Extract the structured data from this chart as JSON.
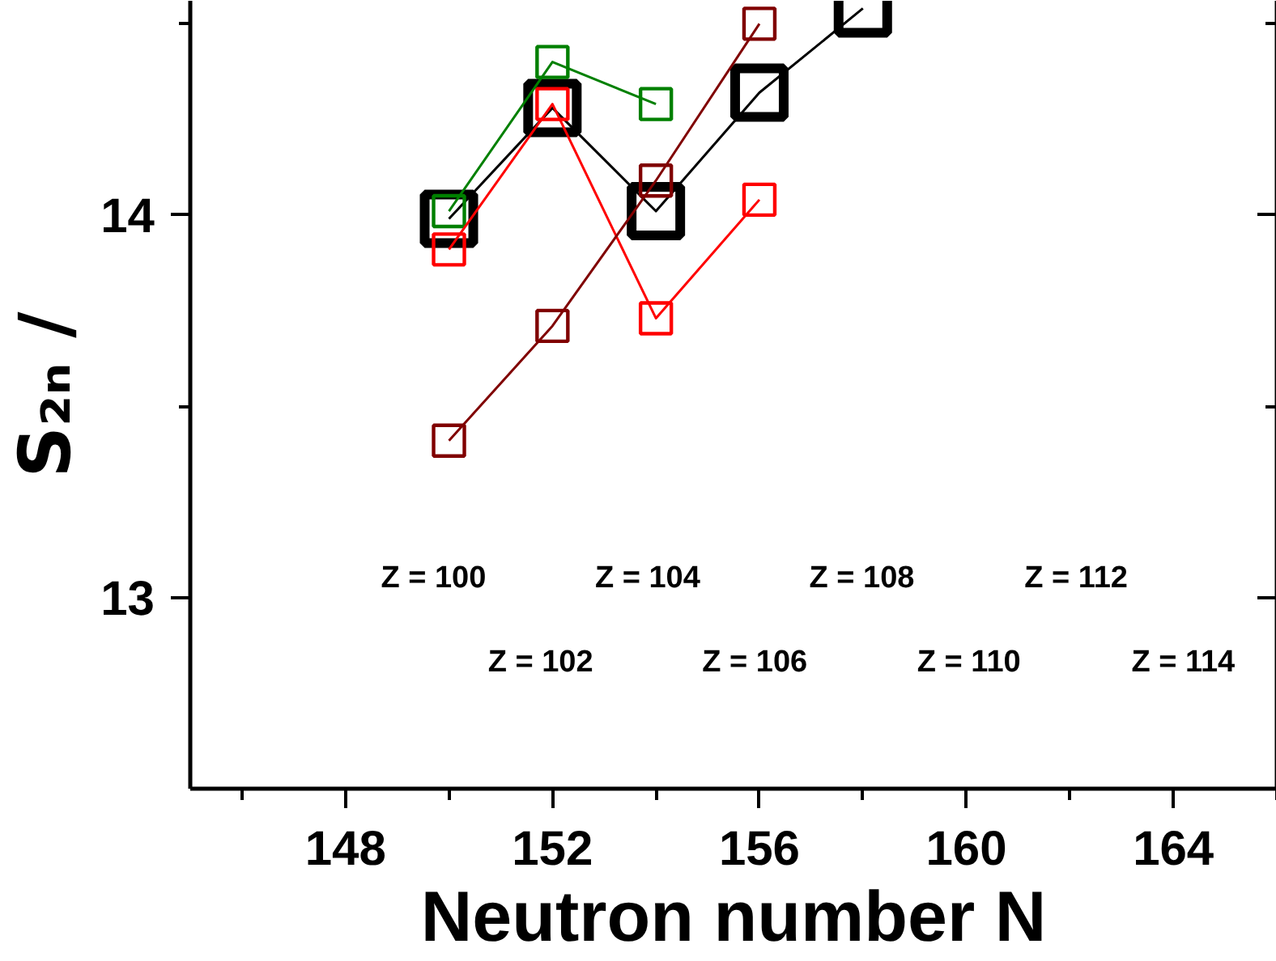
{
  "chart_data": {
    "type": "line",
    "xlabel": "Neutron number N",
    "ylabel": "S₂ₙ /",
    "xlim": [
      145,
      166
    ],
    "ylim": [
      12.5,
      14.56
    ],
    "xticks": [
      {
        "value": 146,
        "label": null
      },
      148,
      {
        "value": 150,
        "label": null
      },
      152,
      {
        "value": 154,
        "label": null
      },
      156,
      {
        "value": 158,
        "label": null
      },
      160,
      {
        "value": 162,
        "label": null
      },
      164,
      {
        "value": 166,
        "label": null
      }
    ],
    "yticks": [
      13,
      {
        "value": 13.5,
        "label": null
      },
      14,
      {
        "value": 14.5,
        "label": null
      }
    ],
    "marker": "square",
    "grid": false,
    "series": [
      {
        "color": "#000000",
        "x": [
          150,
          152,
          154,
          156,
          158
        ],
        "values": [
          13.99,
          14.28,
          14.01,
          14.32,
          14.54
        ]
      },
      {
        "color": "#008000",
        "x": [
          150,
          152,
          154
        ],
        "values": [
          14.01,
          14.4,
          14.29
        ]
      },
      {
        "color": "#ff0000",
        "x": [
          150,
          152,
          154,
          156
        ],
        "values": [
          13.91,
          14.29,
          13.73,
          14.04
        ]
      },
      {
        "color": "#800000",
        "x": [
          150,
          152,
          154,
          156
        ],
        "values": [
          13.41,
          13.71,
          14.09,
          14.5
        ]
      }
    ],
    "annotations": [
      "Z = 100",
      "Z = 102",
      "Z = 104",
      "Z = 106",
      "Z = 108",
      "Z = 110",
      "Z = 112",
      "Z = 114"
    ]
  }
}
